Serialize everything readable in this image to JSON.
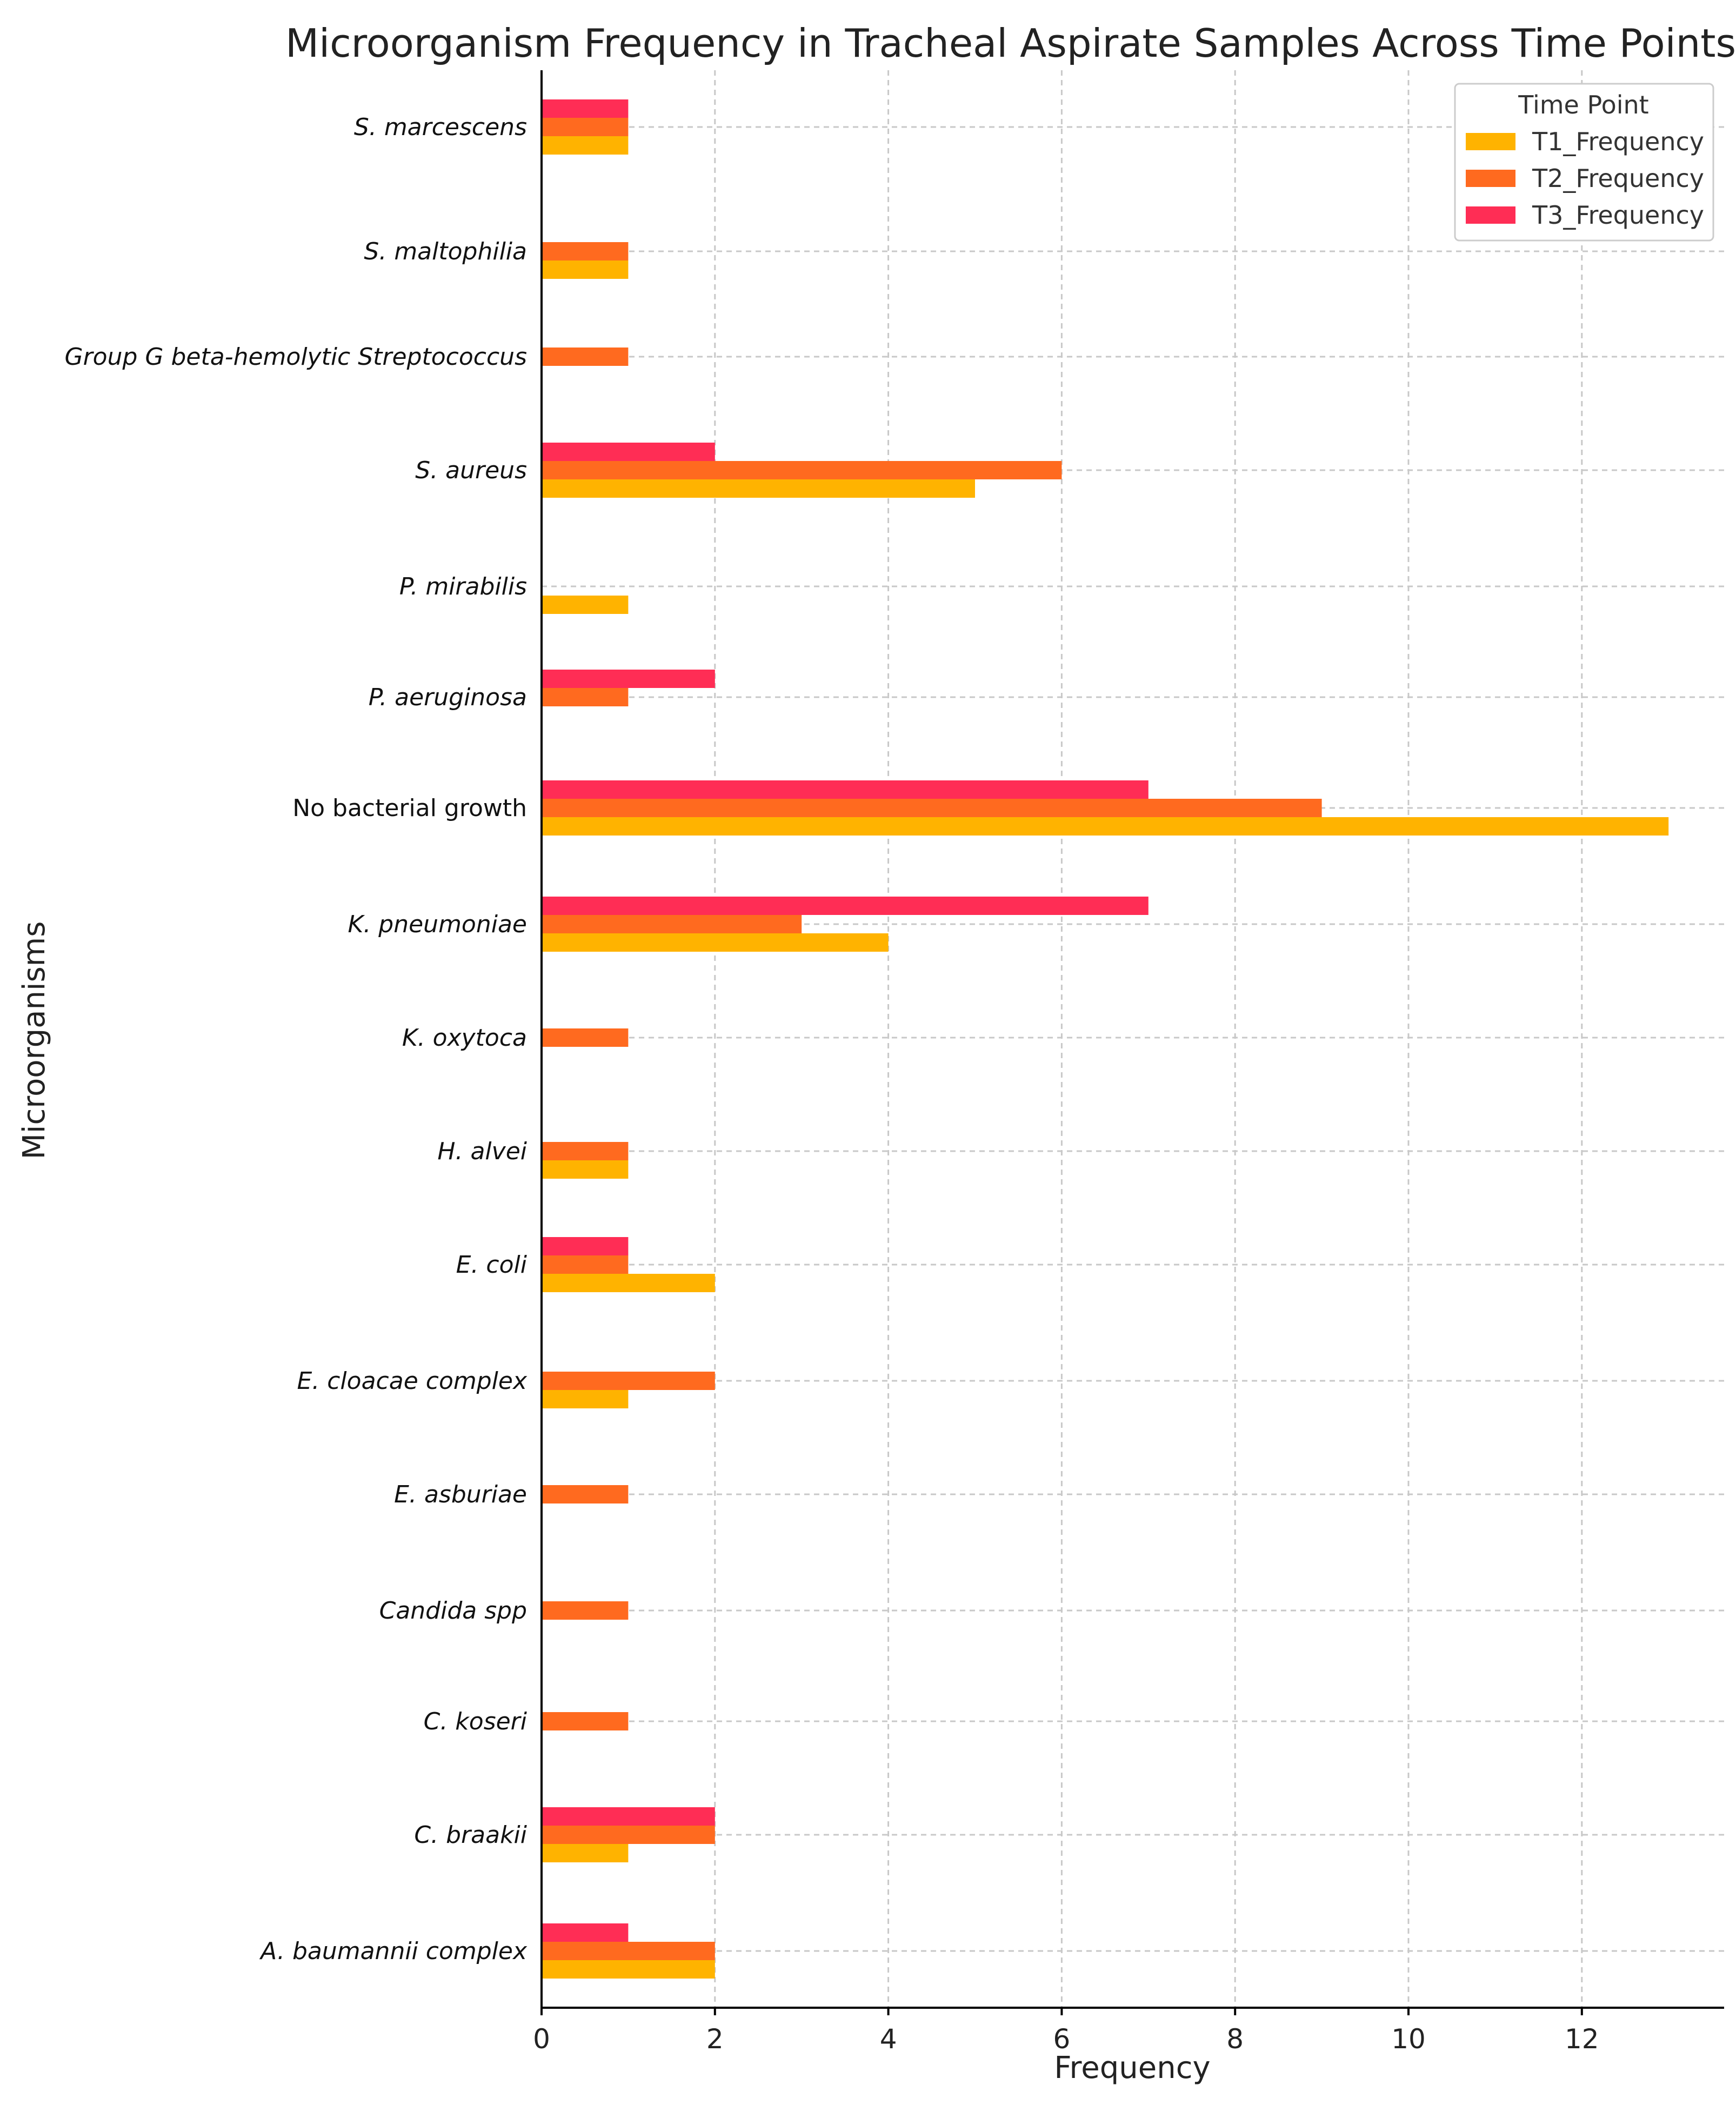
{
  "chart_data": {
    "type": "bar",
    "orientation": "horizontal",
    "title": "Microorganism Frequency in Tracheal Aspirate Samples Across Time Points",
    "xlabel": "Frequency",
    "ylabel": "Microorganisms",
    "xlim": [
      0,
      13.6
    ],
    "xticks": [
      0,
      2,
      4,
      6,
      8,
      10,
      12
    ],
    "grid": true,
    "legend": {
      "title": "Time Point",
      "position": "top-right"
    },
    "categories": [
      {
        "label": "S. marcescens",
        "italic": true
      },
      {
        "label": "S. maltophilia",
        "italic": true
      },
      {
        "label": "Group G beta-hemolytic Streptococcus",
        "italic": true
      },
      {
        "label": "S. aureus",
        "italic": true
      },
      {
        "label": "P. mirabilis",
        "italic": true
      },
      {
        "label": "P. aeruginosa",
        "italic": true
      },
      {
        "label": "No bacterial growth",
        "italic": false
      },
      {
        "label": "K. pneumoniae",
        "italic": true
      },
      {
        "label": "K. oxytoca",
        "italic": true
      },
      {
        "label": "H. alvei",
        "italic": true
      },
      {
        "label": "E. coli",
        "italic": true
      },
      {
        "label": "E. cloacae complex",
        "italic": true
      },
      {
        "label": "E. asburiae",
        "italic": true
      },
      {
        "label": "Candida spp",
        "italic": true
      },
      {
        "label": "C. koseri",
        "italic": true
      },
      {
        "label": "C. braakii",
        "italic": true
      },
      {
        "label": "A. baumannii complex",
        "italic": true
      }
    ],
    "series": [
      {
        "name": "T1_Frequency",
        "color": "#FFB300",
        "values": [
          1,
          1,
          0,
          5,
          1,
          0,
          13,
          4,
          0,
          1,
          2,
          1,
          0,
          0,
          0,
          1,
          2
        ]
      },
      {
        "name": "T2_Frequency",
        "color": "#FF6A1F",
        "values": [
          1,
          1,
          1,
          6,
          0,
          1,
          9,
          3,
          1,
          1,
          1,
          2,
          1,
          1,
          1,
          2,
          2
        ]
      },
      {
        "name": "T3_Frequency",
        "color": "#FF2D55",
        "values": [
          1,
          0,
          0,
          2,
          0,
          2,
          7,
          7,
          0,
          0,
          1,
          0,
          0,
          0,
          0,
          2,
          1
        ]
      }
    ]
  }
}
